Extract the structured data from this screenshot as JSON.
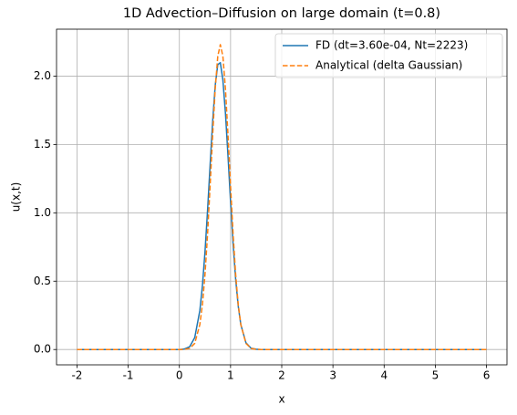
{
  "chart_data": {
    "type": "line",
    "title": "1D Advection–Diffusion on large domain (t=0.8)",
    "xlabel": "x",
    "ylabel": "u(x,t)",
    "x": [
      -2,
      -1,
      0,
      0.1,
      0.2,
      0.3,
      0.4,
      0.45,
      0.5,
      0.55,
      0.6,
      0.65,
      0.7,
      0.75,
      0.8,
      0.85,
      0.9,
      0.95,
      1.0,
      1.05,
      1.1,
      1.15,
      1.2,
      1.3,
      1.4,
      1.5,
      1.6,
      2,
      3,
      4,
      5,
      6
    ],
    "series": [
      {
        "name": "FD (dt=3.60e-04, Nt=2223)",
        "color": "#1f77b4",
        "dash": false,
        "values": [
          0,
          0,
          0,
          0.004,
          0.02,
          0.087,
          0.285,
          0.467,
          0.712,
          1.014,
          1.347,
          1.669,
          1.931,
          2.084,
          2.098,
          1.971,
          1.729,
          1.414,
          1.08,
          0.768,
          0.511,
          0.317,
          0.183,
          0.05,
          0.01,
          0.002,
          0,
          0,
          0,
          0,
          0,
          0
        ]
      },
      {
        "name": "Analytical (delta Gaussian)",
        "color": "#ff7f0e",
        "dash": true,
        "values": [
          0,
          0,
          0,
          0.001,
          0.008,
          0.045,
          0.183,
          0.329,
          0.546,
          0.84,
          1.194,
          1.568,
          1.907,
          2.145,
          2.23,
          2.145,
          1.907,
          1.568,
          1.194,
          0.84,
          0.546,
          0.329,
          0.183,
          0.045,
          0.008,
          0.001,
          0,
          0,
          0,
          0,
          0,
          0
        ]
      }
    ],
    "xlim": [
      -2.4,
      6.4
    ],
    "xticks": [
      -2,
      -1,
      0,
      1,
      2,
      3,
      4,
      5,
      6
    ],
    "ylim": [
      -0.112,
      2.343
    ],
    "yticks": [
      {
        "value": 0,
        "label": "0.0"
      },
      0.5,
      {
        "value": 1,
        "label": "1.0"
      },
      1.5,
      {
        "value": 2,
        "label": "2.0"
      }
    ],
    "grid": true,
    "legend": "upper right"
  }
}
